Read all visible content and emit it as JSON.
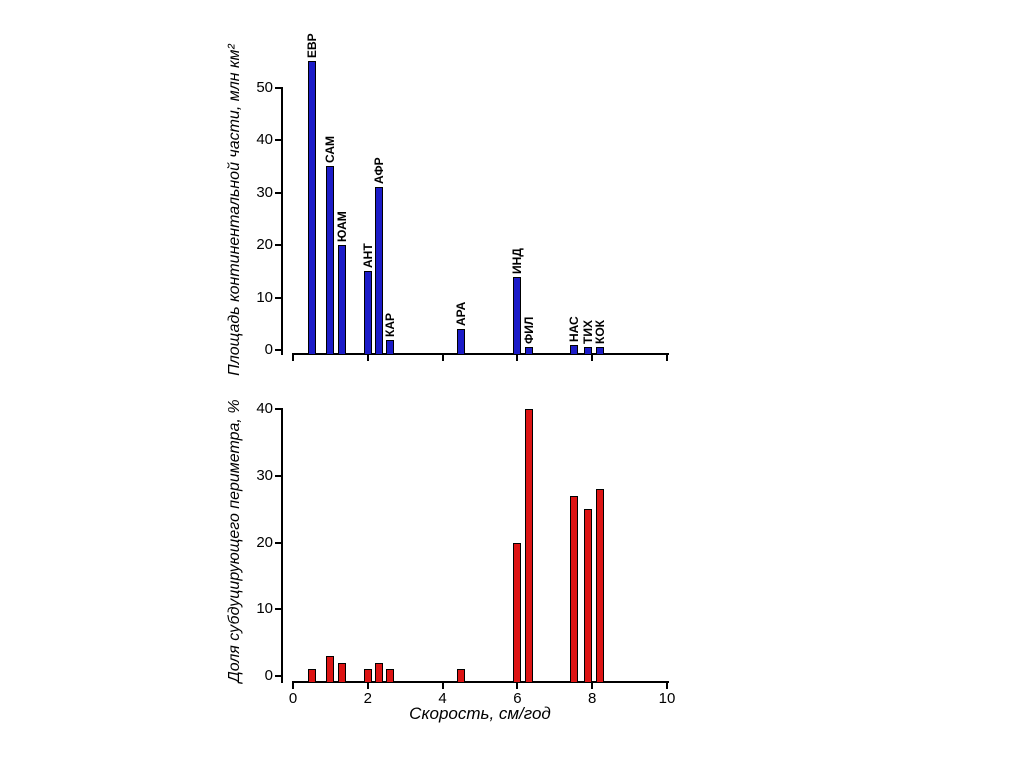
{
  "figure": {
    "background_color": "#ffffff",
    "axis_color": "#000000",
    "text_color": "#000000"
  },
  "chart_data": [
    {
      "name": "continental-area-chart",
      "type": "bar",
      "title": "",
      "ylabel": "Площадь континентальной части, млн км²",
      "xlabel": "",
      "ylim": [
        0,
        50
      ],
      "yticks": [
        0,
        10,
        20,
        30,
        40,
        50
      ],
      "xlim": [
        0,
        10
      ],
      "xticks": [
        0,
        2,
        4,
        6,
        8,
        10
      ],
      "x_tick_labels_visible": false,
      "grid": false,
      "legend": "none",
      "bar_color": "#1c1cc8",
      "bar_border_color": "#000000",
      "bars": [
        {
          "label": "ЕВР",
          "x": 0.5,
          "value": 55
        },
        {
          "label": "САМ",
          "x": 1.0,
          "value": 35
        },
        {
          "label": "ЮАМ",
          "x": 1.3,
          "value": 20
        },
        {
          "label": "АНТ",
          "x": 2.0,
          "value": 15
        },
        {
          "label": "АФР",
          "x": 2.3,
          "value": 31
        },
        {
          "label": "КАР",
          "x": 2.6,
          "value": 2
        },
        {
          "label": "АРА",
          "x": 4.5,
          "value": 4
        },
        {
          "label": "ИНД",
          "x": 6.0,
          "value": 14
        },
        {
          "label": "ФИЛ",
          "x": 6.3,
          "value": 0.5
        },
        {
          "label": "НАС",
          "x": 7.5,
          "value": 1
        },
        {
          "label": "ТИХ",
          "x": 7.9,
          "value": 0.5
        },
        {
          "label": "КОК",
          "x": 8.2,
          "value": 0.5
        }
      ]
    },
    {
      "name": "subducting-perimeter-chart",
      "type": "bar",
      "title": "",
      "ylabel": "Доля субдуцирующего периметра, %",
      "xlabel": "Скорость, см/год",
      "ylim": [
        0,
        40
      ],
      "yticks": [
        0,
        10,
        20,
        30,
        40
      ],
      "xlim": [
        0,
        10
      ],
      "xticks": [
        0,
        2,
        4,
        6,
        8,
        10
      ],
      "x_tick_labels_visible": true,
      "grid": false,
      "legend": "none",
      "bar_color": "#dd1414",
      "bar_border_color": "#000000",
      "bars": [
        {
          "label": "",
          "x": 0.5,
          "value": 1
        },
        {
          "label": "",
          "x": 1.0,
          "value": 3
        },
        {
          "label": "",
          "x": 1.3,
          "value": 2
        },
        {
          "label": "",
          "x": 2.0,
          "value": 1
        },
        {
          "label": "",
          "x": 2.3,
          "value": 2
        },
        {
          "label": "",
          "x": 2.6,
          "value": 1
        },
        {
          "label": "",
          "x": 4.5,
          "value": 1
        },
        {
          "label": "",
          "x": 6.0,
          "value": 20
        },
        {
          "label": "",
          "x": 6.3,
          "value": 40
        },
        {
          "label": "",
          "x": 7.5,
          "value": 27
        },
        {
          "label": "",
          "x": 7.9,
          "value": 25
        },
        {
          "label": "",
          "x": 8.2,
          "value": 28
        }
      ]
    }
  ]
}
